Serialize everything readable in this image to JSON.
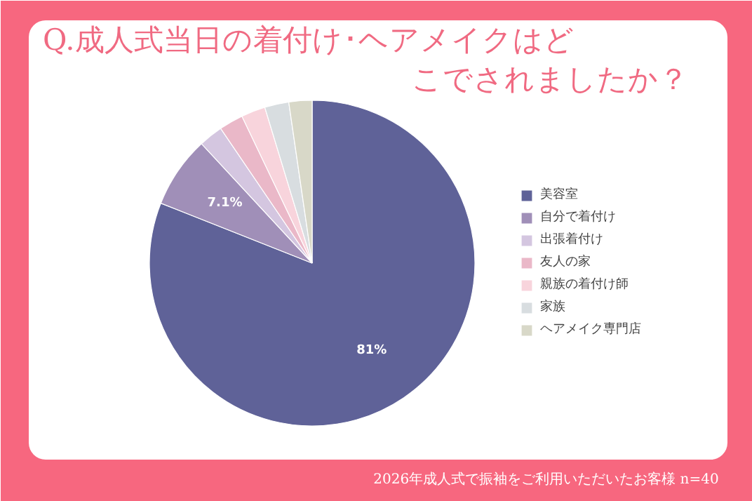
{
  "chart_data": {
    "type": "pie",
    "title": "Q.成人式当日の着付け･ヘアメイクはどこでされましたか？",
    "categories": [
      "美容室",
      "自分で着付け",
      "出張着付け",
      "友人の家",
      "親族の着付け師",
      "家族",
      "ヘアメイク専門店"
    ],
    "values": [
      81,
      7.1,
      2.4,
      2.4,
      2.4,
      2.4,
      2.3
    ],
    "colors": [
      "#5f6298",
      "#a08fb8",
      "#d4c6e0",
      "#eab8c8",
      "#f8d4dc",
      "#d8dde0",
      "#d8d8c8"
    ],
    "value_labels": [
      "81%",
      "7.1%",
      null,
      null,
      null,
      null,
      null
    ],
    "legend": "right",
    "annotations": [
      "2026年成人式で振袖をご利用いただいたお客様  n=40"
    ]
  }
}
